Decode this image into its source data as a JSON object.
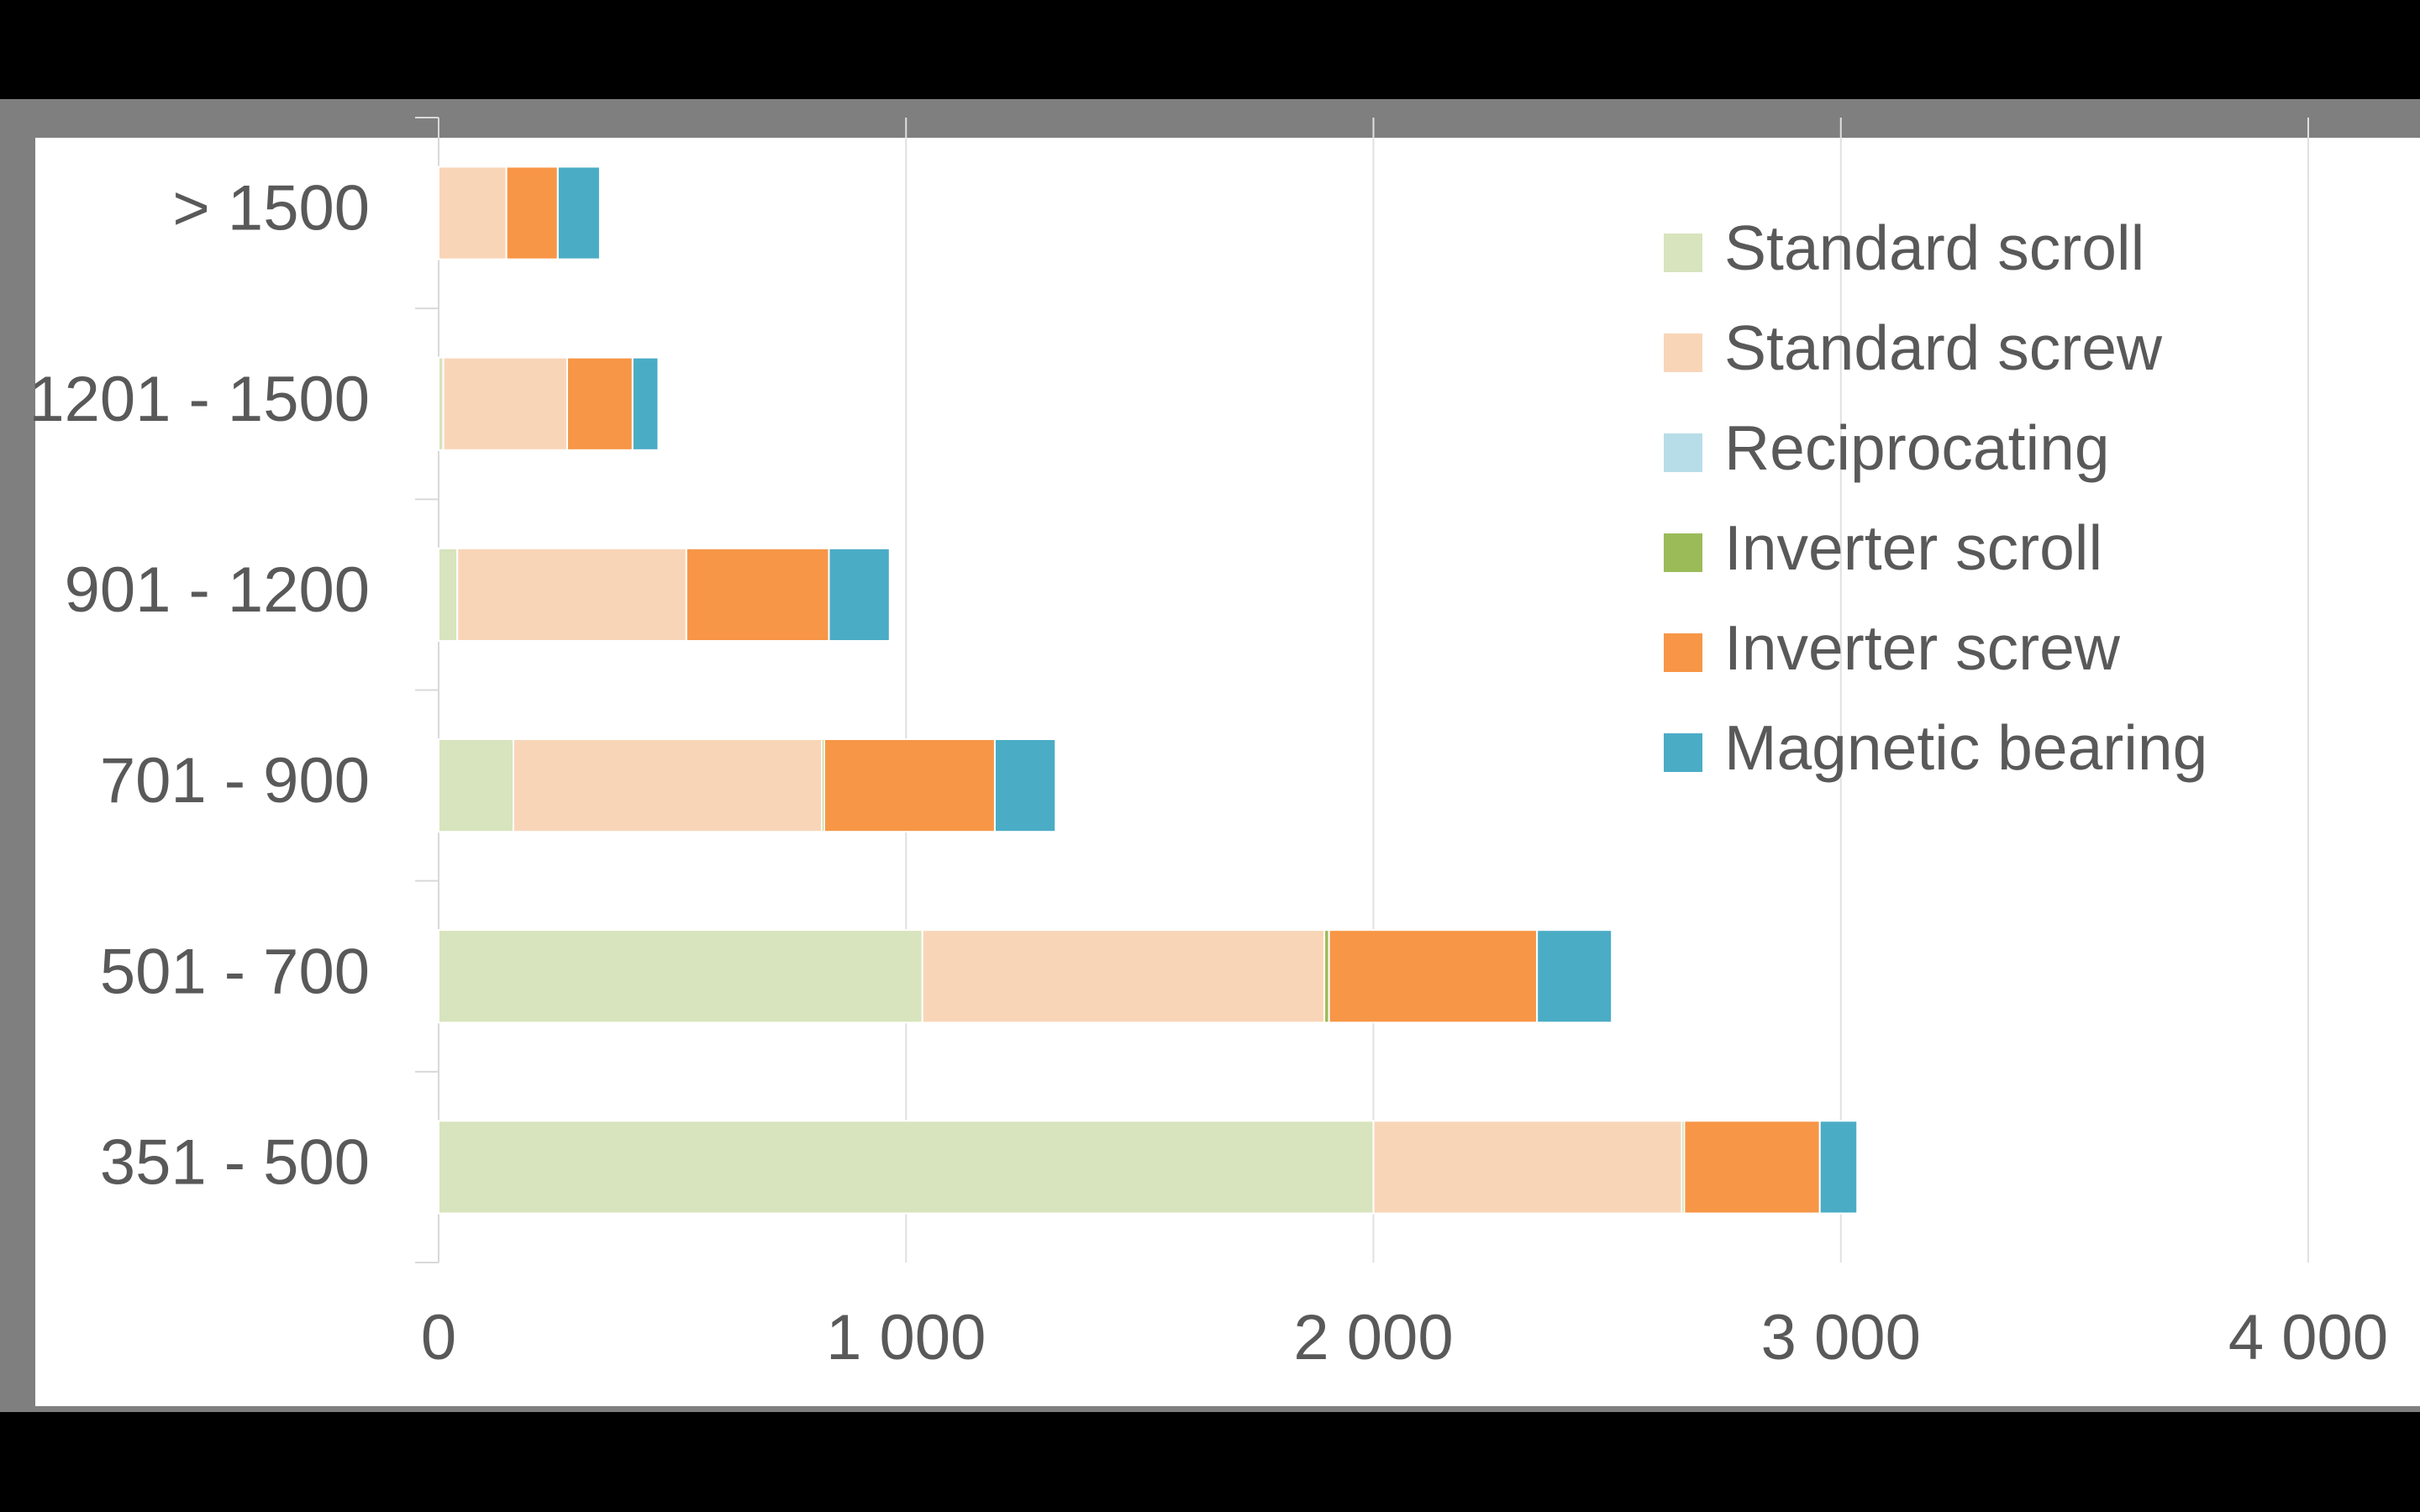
{
  "chart_data": {
    "type": "bar",
    "orientation": "horizontal",
    "stacked": true,
    "title": "",
    "xlabel": "",
    "ylabel": "",
    "xlim": [
      0,
      4000
    ],
    "x_ticks": [
      "0",
      "1 000",
      "2 000",
      "3 000",
      "4 000"
    ],
    "x_tick_values": [
      0,
      1000,
      2000,
      3000,
      4000
    ],
    "grid": "vertical",
    "legend_position": "top-right",
    "categories": [
      "> 1500",
      "1201 - 1500",
      "901 - 1200",
      "701 - 900",
      "501 - 700",
      "351 - 500"
    ],
    "series": [
      {
        "name": "Standard scroll",
        "color": "#d7e4bd",
        "values": [
          0,
          10,
          40,
          160,
          1035,
          2000
        ]
      },
      {
        "name": "Standard screw",
        "color": "#f9d5b8",
        "values": [
          145,
          265,
          490,
          660,
          860,
          660
        ]
      },
      {
        "name": "Reciprocating",
        "color": "#b7dde8",
        "values": [
          0,
          0,
          0,
          0,
          0,
          0
        ]
      },
      {
        "name": "Inverter scroll",
        "color": "#9bbb59",
        "values": [
          0,
          0,
          0,
          5,
          10,
          5
        ]
      },
      {
        "name": "Inverter screw",
        "color": "#f79646",
        "values": [
          110,
          140,
          305,
          365,
          445,
          290
        ]
      },
      {
        "name": "Magnetic bearing",
        "color": "#4bacc6",
        "values": [
          90,
          55,
          130,
          130,
          160,
          80
        ]
      }
    ]
  }
}
